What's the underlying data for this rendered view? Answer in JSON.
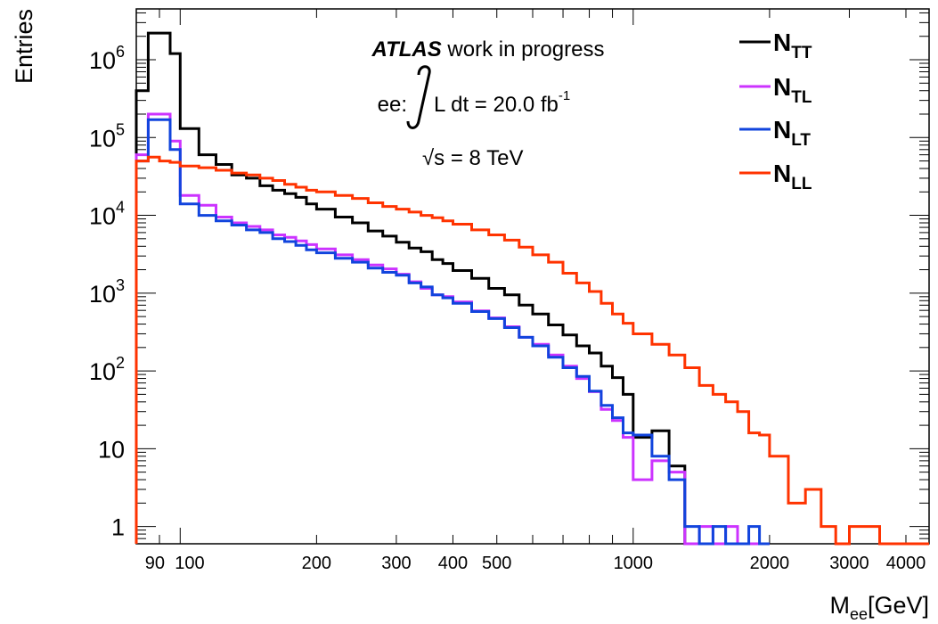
{
  "chart_data": {
    "type": "line",
    "step": true,
    "xlabel_main": "M",
    "xlabel_sub": "ee",
    "xlabel_unit": "[GeV]",
    "ylabel": "Entries",
    "xlim": [
      80,
      4500
    ],
    "ylim": [
      0.6,
      4500000
    ],
    "x_scale": "log",
    "y_scale": "log",
    "x_ticks": [
      {
        "value": 90,
        "label": "90"
      },
      {
        "value": 100,
        "label": "100"
      },
      {
        "value": 200,
        "label": "200"
      },
      {
        "value": 300,
        "label": "300"
      },
      {
        "value": 400,
        "label": "400"
      },
      {
        "value": 500,
        "label": "500"
      },
      {
        "value": 1000,
        "label": "1000"
      },
      {
        "value": 2000,
        "label": "2000"
      },
      {
        "value": 3000,
        "label": "3000"
      },
      {
        "value": 4000,
        "label": "4000"
      }
    ],
    "y_ticks": [
      {
        "value": 1,
        "base": "1",
        "exp": ""
      },
      {
        "value": 10,
        "base": "10",
        "exp": ""
      },
      {
        "value": 100,
        "base": "10",
        "exp": "2"
      },
      {
        "value": 1000,
        "base": "10",
        "exp": "3"
      },
      {
        "value": 10000,
        "base": "10",
        "exp": "4"
      },
      {
        "value": 100000,
        "base": "10",
        "exp": "5"
      },
      {
        "value": 1000000,
        "base": "10",
        "exp": "6"
      }
    ],
    "annotation": {
      "experiment": "ATLAS",
      "status": "work in progress",
      "channel": "ee:",
      "lumi": "L dt = 20.0 fb",
      "lumi_exp": "-1",
      "sqrt_symbol": "√",
      "energy": "s = 8 TeV"
    },
    "legend_position": "top-right",
    "series": [
      {
        "name": "N",
        "name_sub": "TT",
        "color": "#000000",
        "edges": [
          80,
          85,
          90,
          95,
          100,
          110,
          120,
          130,
          140,
          150,
          160,
          170,
          180,
          190,
          200,
          220,
          240,
          260,
          280,
          300,
          320,
          340,
          360,
          380,
          400,
          440,
          480,
          520,
          560,
          600,
          650,
          700,
          750,
          800,
          850,
          900,
          950,
          1000,
          1100,
          1200,
          1300,
          1400,
          1500,
          1600,
          1700,
          1800,
          1900,
          2000
        ],
        "values": [
          400000,
          2200000,
          2200000,
          1200000,
          130000,
          60000,
          45000,
          33000,
          30000,
          24000,
          21000,
          19000,
          17000,
          14000,
          12000,
          9500,
          8000,
          6300,
          5400,
          4500,
          3800,
          3400,
          2700,
          2400,
          1950,
          1550,
          1150,
          950,
          700,
          540,
          390,
          290,
          210,
          170,
          115,
          82,
          50,
          14,
          17,
          6,
          0.5,
          0.5,
          0.5,
          0.5,
          0.5,
          0.5,
          0.5
        ]
      },
      {
        "name": "N",
        "name_sub": "TL",
        "color": "#cc33ff",
        "edges": [
          80,
          85,
          90,
          95,
          100,
          110,
          120,
          130,
          140,
          150,
          160,
          170,
          180,
          190,
          200,
          220,
          240,
          260,
          280,
          300,
          320,
          340,
          360,
          380,
          400,
          440,
          480,
          520,
          560,
          600,
          650,
          700,
          750,
          800,
          850,
          900,
          950,
          1000,
          1100,
          1200,
          1300,
          1400,
          1500,
          1600,
          1700,
          1800,
          1900,
          2000
        ],
        "values": [
          60000,
          200000,
          200000,
          90000,
          18000,
          13500,
          9500,
          8000,
          7200,
          6500,
          5600,
          5200,
          4700,
          4200,
          3700,
          3100,
          2700,
          2300,
          2050,
          1750,
          1400,
          1150,
          950,
          900,
          770,
          590,
          480,
          370,
          270,
          220,
          160,
          115,
          80,
          54,
          32,
          23,
          14,
          4,
          7,
          5,
          0.5,
          1,
          0.5,
          1,
          0.5,
          0.5,
          0.5
        ]
      },
      {
        "name": "N",
        "name_sub": "LT",
        "color": "#1144dd",
        "edges": [
          80,
          85,
          90,
          95,
          100,
          110,
          120,
          130,
          140,
          150,
          160,
          170,
          180,
          190,
          200,
          220,
          240,
          260,
          280,
          300,
          320,
          340,
          360,
          380,
          400,
          440,
          480,
          520,
          560,
          600,
          650,
          700,
          750,
          800,
          850,
          900,
          950,
          1000,
          1100,
          1200,
          1300,
          1400,
          1500,
          1600,
          1700,
          1800,
          1900,
          2000
        ],
        "values": [
          50000,
          170000,
          170000,
          70000,
          14000,
          10000,
          8500,
          7500,
          6500,
          6000,
          5000,
          4600,
          4100,
          3600,
          3300,
          2800,
          2500,
          2100,
          1850,
          1700,
          1350,
          1200,
          950,
          870,
          740,
          580,
          470,
          360,
          270,
          210,
          150,
          110,
          85,
          55,
          36,
          25,
          16,
          15,
          8,
          4,
          1,
          0.5,
          1,
          0.5,
          0.5,
          1,
          0.5
        ]
      },
      {
        "name": "N",
        "name_sub": "LL",
        "color": "#ff3300",
        "edges": [
          80,
          85,
          90,
          95,
          100,
          110,
          120,
          130,
          140,
          150,
          160,
          170,
          180,
          190,
          200,
          220,
          240,
          260,
          280,
          300,
          320,
          340,
          360,
          380,
          400,
          440,
          480,
          520,
          560,
          600,
          650,
          700,
          750,
          800,
          850,
          900,
          950,
          1000,
          1100,
          1200,
          1300,
          1400,
          1500,
          1600,
          1700,
          1800,
          1900,
          2000,
          2200,
          2400,
          2600,
          2800,
          3000,
          3500,
          4500
        ],
        "values": [
          50000,
          56000,
          50000,
          48000,
          43000,
          41000,
          38000,
          35000,
          33000,
          30000,
          28000,
          25000,
          23000,
          21000,
          20000,
          18000,
          16500,
          14500,
          13000,
          12000,
          11000,
          10000,
          9300,
          8500,
          7700,
          6500,
          5600,
          4800,
          3900,
          3100,
          2500,
          1800,
          1350,
          1050,
          740,
          540,
          410,
          300,
          220,
          160,
          110,
          65,
          50,
          40,
          30,
          16,
          15,
          8,
          2,
          3,
          1,
          0.5,
          1,
          0.5,
          0.5
        ]
      }
    ]
  }
}
